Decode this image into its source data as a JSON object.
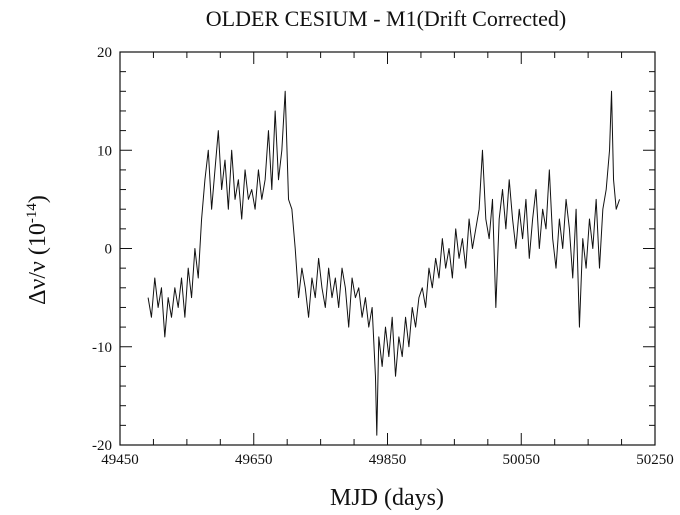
{
  "chart_data": {
    "type": "line",
    "title": "OLDER CESIUM - M1(Drift Corrected)",
    "xlabel": "MJD (days)",
    "ylabel": {
      "text": "Δν/ν (10",
      "superscript": "-14",
      "suffix": ")"
    },
    "xlim": [
      49450,
      50250
    ],
    "xticks": [
      49450,
      49650,
      49850,
      50050,
      50250
    ],
    "xticks_minor": [
      49500,
      49550,
      49600,
      49700,
      49750,
      49800,
      49900,
      49950,
      50000,
      50100,
      50150,
      50200
    ],
    "ylim": [
      -20,
      20
    ],
    "yticks": [
      -20,
      -10,
      0,
      10,
      20
    ],
    "yticks_minor": [
      -18,
      -16,
      -14,
      -12,
      -8,
      -6,
      -4,
      -2,
      2,
      4,
      6,
      8,
      12,
      14,
      16,
      18
    ],
    "grid": false,
    "series": [
      {
        "color": "#111111",
        "x": [
          49492,
          49497,
          49502,
          49507,
          49512,
          49517,
          49522,
          49527,
          49532,
          49537,
          49542,
          49547,
          49552,
          49557,
          49562,
          49567,
          49572,
          49577,
          49582,
          49587,
          49592,
          49597,
          49602,
          49607,
          49612,
          49617,
          49622,
          49627,
          49632,
          49637,
          49642,
          49647,
          49652,
          49657,
          49662,
          49667,
          49672,
          49677,
          49682,
          49687,
          49692,
          49697,
          49702,
          49707,
          49712,
          49717,
          49722,
          49727,
          49732,
          49737,
          49742,
          49747,
          49752,
          49757,
          49762,
          49767,
          49772,
          49777,
          49782,
          49787,
          49792,
          49797,
          49802,
          49807,
          49812,
          49817,
          49822,
          49827,
          49832,
          49834,
          49837,
          49842,
          49847,
          49852,
          49857,
          49862,
          49867,
          49872,
          49877,
          49882,
          49887,
          49892,
          49897,
          49902,
          49907,
          49912,
          49917,
          49922,
          49927,
          49932,
          49937,
          49942,
          49947,
          49952,
          49957,
          49962,
          49967,
          49972,
          49977,
          49982,
          49987,
          49992,
          49997,
          50002,
          50007,
          50012,
          50017,
          50022,
          50027,
          50032,
          50037,
          50042,
          50047,
          50052,
          50057,
          50062,
          50067,
          50072,
          50077,
          50082,
          50087,
          50092,
          50097,
          50102,
          50107,
          50112,
          50117,
          50122,
          50127,
          50132,
          50137,
          50142,
          50147,
          50152,
          50157,
          50162,
          50167,
          50172,
          50177,
          50182,
          50185,
          50188,
          50192,
          50197
        ],
        "values": [
          -5,
          -7,
          -3,
          -6,
          -4,
          -9,
          -5,
          -7,
          -4,
          -6,
          -3,
          -7,
          -2,
          -5,
          0,
          -3,
          3,
          7,
          10,
          4,
          8,
          12,
          6,
          9,
          4,
          10,
          5,
          7,
          3,
          8,
          5,
          6,
          4,
          8,
          5,
          7,
          12,
          6,
          14,
          7,
          10,
          16,
          5,
          4,
          0,
          -5,
          -2,
          -4,
          -7,
          -3,
          -5,
          -1,
          -4,
          -6,
          -2,
          -5,
          -3,
          -6,
          -2,
          -4,
          -8,
          -3,
          -5,
          -4,
          -7,
          -5,
          -8,
          -6,
          -13,
          -19,
          -9,
          -12,
          -8,
          -11,
          -7,
          -13,
          -9,
          -11,
          -7,
          -10,
          -6,
          -8,
          -5,
          -4,
          -6,
          -2,
          -4,
          -1,
          -3,
          1,
          -2,
          0,
          -3,
          2,
          -1,
          1,
          -2,
          3,
          0,
          2,
          4,
          10,
          3,
          1,
          5,
          -6,
          3,
          6,
          2,
          7,
          3,
          0,
          4,
          1,
          5,
          -1,
          3,
          6,
          0,
          4,
          2,
          8,
          1,
          -2,
          3,
          0,
          5,
          2,
          -3,
          4,
          -8,
          1,
          -2,
          3,
          0,
          5,
          -2,
          4,
          6,
          10,
          16,
          7,
          4,
          5
        ]
      }
    ]
  }
}
